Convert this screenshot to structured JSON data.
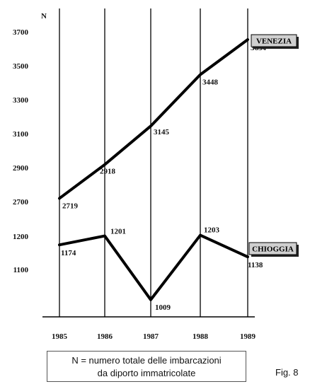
{
  "chart_data": {
    "type": "line",
    "ylabel": "N",
    "x": [
      "1985",
      "1986",
      "1987",
      "1988",
      "1989"
    ],
    "yticks_upper": [
      "3700",
      "3500",
      "3300",
      "3100",
      "2900",
      "2700"
    ],
    "yticks_lower": [
      "1200",
      "1100"
    ],
    "series": [
      {
        "name": "VENEZIA",
        "values": [
          2719,
          2918,
          3145,
          3448,
          3654
        ],
        "labels": [
          "2719",
          "2918",
          "3145",
          "3448",
          "3654"
        ]
      },
      {
        "name": "CHIOGGIA",
        "values": [
          1174,
          1201,
          1009,
          1203,
          1138
        ],
        "labels": [
          "1174",
          "1201",
          "1009",
          "1203",
          "1138"
        ]
      }
    ],
    "y_axis_break": true,
    "grid": "vertical lines at each year",
    "legend": "series labels in shaded boxes at right"
  },
  "note": {
    "line1": "N = numero totale delle imbarcazioni",
    "line2": "da diporto immatricolate"
  },
  "figure_label": "Fig. 8"
}
